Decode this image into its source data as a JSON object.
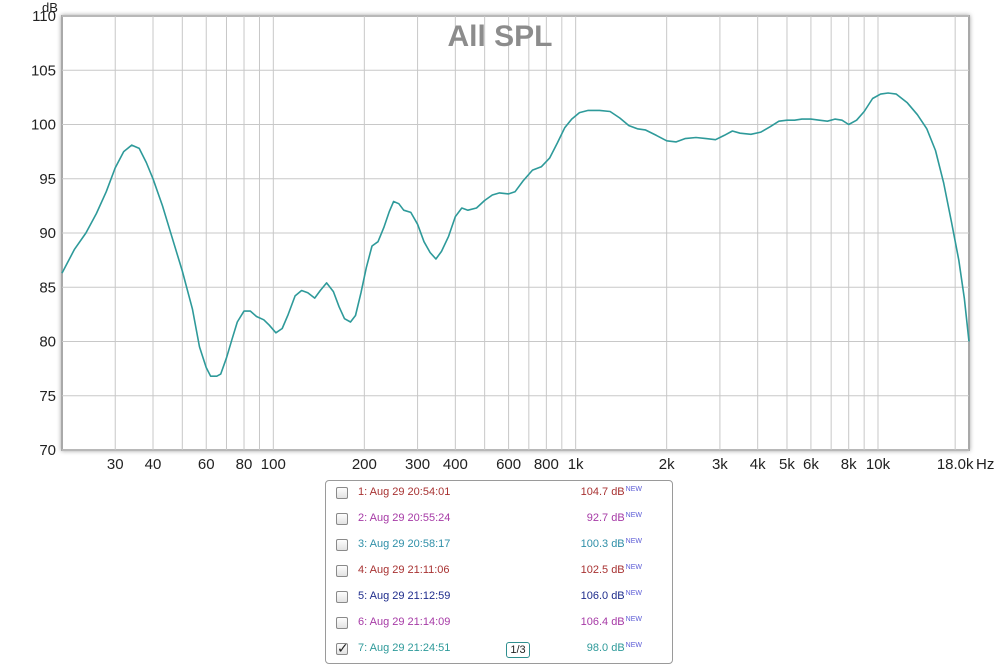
{
  "chart_data": {
    "type": "line",
    "title": "All SPL",
    "ylabel": "dB",
    "xlabel_unit": "Hz",
    "x_scale": "log",
    "xlim": [
      20,
      20000
    ],
    "ylim": [
      70,
      110
    ],
    "grid": true,
    "y_ticks": [
      70,
      75,
      80,
      85,
      90,
      95,
      100,
      105,
      110
    ],
    "x_ticks": [
      {
        "value": 30,
        "label": "30"
      },
      {
        "value": 40,
        "label": "40"
      },
      {
        "value": 50,
        "label": ""
      },
      {
        "value": 60,
        "label": "60"
      },
      {
        "value": 70,
        "label": ""
      },
      {
        "value": 80,
        "label": "80"
      },
      {
        "value": 90,
        "label": ""
      },
      {
        "value": 100,
        "label": "100"
      },
      {
        "value": 200,
        "label": "200"
      },
      {
        "value": 300,
        "label": "300"
      },
      {
        "value": 400,
        "label": "400"
      },
      {
        "value": 500,
        "label": ""
      },
      {
        "value": 600,
        "label": "600"
      },
      {
        "value": 700,
        "label": ""
      },
      {
        "value": 800,
        "label": "800"
      },
      {
        "value": 900,
        "label": ""
      },
      {
        "value": 1000,
        "label": "1k"
      },
      {
        "value": 2000,
        "label": "2k"
      },
      {
        "value": 3000,
        "label": "3k"
      },
      {
        "value": 4000,
        "label": "4k"
      },
      {
        "value": 5000,
        "label": "5k"
      },
      {
        "value": 6000,
        "label": "6k"
      },
      {
        "value": 7000,
        "label": ""
      },
      {
        "value": 8000,
        "label": "8k"
      },
      {
        "value": 9000,
        "label": ""
      },
      {
        "value": 10000,
        "label": "10k"
      },
      {
        "value": 18000,
        "label": "18.0k"
      }
    ],
    "series": [
      {
        "color": "#2e9a9a",
        "points": [
          [
            20,
            86.3
          ],
          [
            22,
            88.5
          ],
          [
            24,
            90.0
          ],
          [
            26,
            91.8
          ],
          [
            28,
            93.8
          ],
          [
            30,
            96.0
          ],
          [
            32,
            97.5
          ],
          [
            34,
            98.1
          ],
          [
            36,
            97.8
          ],
          [
            38,
            96.5
          ],
          [
            40,
            95.0
          ],
          [
            43,
            92.5
          ],
          [
            46,
            89.8
          ],
          [
            50,
            86.5
          ],
          [
            54,
            83.0
          ],
          [
            57,
            79.5
          ],
          [
            60,
            77.6
          ],
          [
            62,
            76.8
          ],
          [
            65,
            76.8
          ],
          [
            67,
            77.0
          ],
          [
            70,
            78.5
          ],
          [
            73,
            80.2
          ],
          [
            76,
            81.8
          ],
          [
            80,
            82.8
          ],
          [
            84,
            82.8
          ],
          [
            88,
            82.3
          ],
          [
            93,
            82.0
          ],
          [
            97,
            81.5
          ],
          [
            102,
            80.8
          ],
          [
            107,
            81.2
          ],
          [
            112,
            82.5
          ],
          [
            118,
            84.2
          ],
          [
            124,
            84.7
          ],
          [
            130,
            84.5
          ],
          [
            137,
            84.0
          ],
          [
            143,
            84.7
          ],
          [
            150,
            85.4
          ],
          [
            158,
            84.6
          ],
          [
            165,
            83.2
          ],
          [
            172,
            82.1
          ],
          [
            180,
            81.8
          ],
          [
            187,
            82.4
          ],
          [
            195,
            84.5
          ],
          [
            203,
            86.8
          ],
          [
            212,
            88.8
          ],
          [
            222,
            89.2
          ],
          [
            232,
            90.5
          ],
          [
            242,
            92.0
          ],
          [
            250,
            92.9
          ],
          [
            260,
            92.7
          ],
          [
            270,
            92.1
          ],
          [
            285,
            91.9
          ],
          [
            300,
            90.8
          ],
          [
            315,
            89.2
          ],
          [
            330,
            88.2
          ],
          [
            345,
            87.6
          ],
          [
            360,
            88.3
          ],
          [
            380,
            89.7
          ],
          [
            400,
            91.5
          ],
          [
            420,
            92.3
          ],
          [
            440,
            92.1
          ],
          [
            470,
            92.3
          ],
          [
            500,
            93.0
          ],
          [
            530,
            93.5
          ],
          [
            560,
            93.7
          ],
          [
            600,
            93.6
          ],
          [
            630,
            93.8
          ],
          [
            670,
            94.8
          ],
          [
            720,
            95.8
          ],
          [
            770,
            96.1
          ],
          [
            820,
            96.9
          ],
          [
            870,
            98.3
          ],
          [
            920,
            99.7
          ],
          [
            970,
            100.5
          ],
          [
            1030,
            101.1
          ],
          [
            1100,
            101.3
          ],
          [
            1200,
            101.3
          ],
          [
            1300,
            101.2
          ],
          [
            1400,
            100.6
          ],
          [
            1500,
            99.9
          ],
          [
            1600,
            99.6
          ],
          [
            1700,
            99.5
          ],
          [
            1850,
            99.0
          ],
          [
            2000,
            98.5
          ],
          [
            2150,
            98.4
          ],
          [
            2300,
            98.7
          ],
          [
            2500,
            98.8
          ],
          [
            2700,
            98.7
          ],
          [
            2900,
            98.6
          ],
          [
            3100,
            99.0
          ],
          [
            3300,
            99.4
          ],
          [
            3500,
            99.2
          ],
          [
            3800,
            99.1
          ],
          [
            4100,
            99.3
          ],
          [
            4400,
            99.8
          ],
          [
            4700,
            100.3
          ],
          [
            5000,
            100.4
          ],
          [
            5300,
            100.4
          ],
          [
            5600,
            100.5
          ],
          [
            6000,
            100.5
          ],
          [
            6400,
            100.4
          ],
          [
            6800,
            100.3
          ],
          [
            7200,
            100.5
          ],
          [
            7600,
            100.4
          ],
          [
            8000,
            100.0
          ],
          [
            8500,
            100.4
          ],
          [
            9000,
            101.2
          ],
          [
            9600,
            102.4
          ],
          [
            10200,
            102.8
          ],
          [
            10800,
            102.9
          ],
          [
            11500,
            102.8
          ],
          [
            12500,
            102.0
          ],
          [
            13500,
            100.9
          ],
          [
            14500,
            99.6
          ],
          [
            15500,
            97.6
          ],
          [
            16500,
            94.6
          ],
          [
            17500,
            91.0
          ],
          [
            18500,
            87.5
          ],
          [
            19300,
            84.0
          ],
          [
            20000,
            80.0
          ]
        ]
      }
    ]
  },
  "legend": {
    "items": [
      {
        "label": "1: Aug 29 20:54:01",
        "value": "104.7 dB",
        "badge": "NEW",
        "color": "#a83232",
        "checked": false
      },
      {
        "label": "2: Aug 29 20:55:24",
        "value": "92.7 dB",
        "badge": "NEW",
        "color": "#a63aa6",
        "checked": false
      },
      {
        "label": "3: Aug 29 20:58:17",
        "value": "100.3 dB",
        "badge": "NEW",
        "color": "#2f8fa8",
        "checked": false
      },
      {
        "label": "4: Aug 29 21:11:06",
        "value": "102.5 dB",
        "badge": "NEW",
        "color": "#a83232",
        "checked": false
      },
      {
        "label": "5: Aug 29 21:12:59",
        "value": "106.0 dB",
        "badge": "NEW",
        "color": "#1e2c8c",
        "checked": false
      },
      {
        "label": "6: Aug 29 21:14:09",
        "value": "106.4 dB",
        "badge": "NEW",
        "color": "#a63aa6",
        "checked": false
      },
      {
        "label": "7: Aug 29 21:24:51",
        "value": "98.0 dB",
        "badge": "NEW",
        "color": "#2e9a9a",
        "checked": true
      }
    ],
    "smoothing": "1/3"
  }
}
